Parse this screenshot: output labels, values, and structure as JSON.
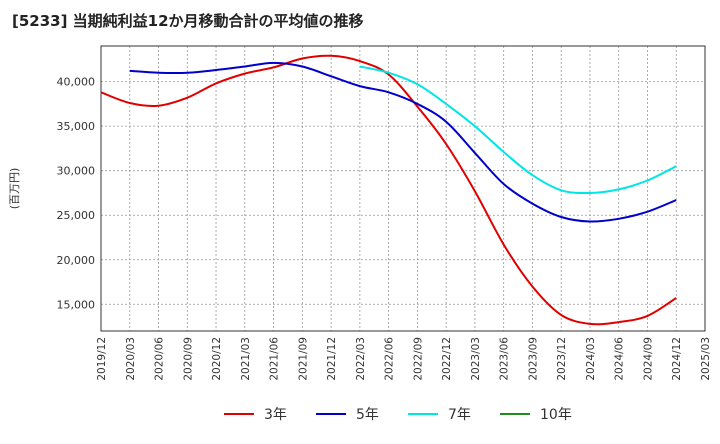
{
  "chart_data": {
    "type": "line",
    "title": "[5233]  当期純利益12か月移動合計の平均値の推移",
    "ylabel": "(百万円)",
    "xlabel": "",
    "ylim": [
      12000,
      44000
    ],
    "yticks": [
      15000,
      20000,
      25000,
      30000,
      35000,
      40000
    ],
    "ytick_labels": [
      "15,000",
      "20,000",
      "25,000",
      "30,000",
      "35,000",
      "40,000"
    ],
    "xticks": [
      "2019/12",
      "2020/03",
      "2020/06",
      "2020/09",
      "2020/12",
      "2021/03",
      "2021/06",
      "2021/09",
      "2021/12",
      "2022/03",
      "2022/06",
      "2022/09",
      "2022/12",
      "2023/03",
      "2023/06",
      "2023/09",
      "2023/12",
      "2024/03",
      "2024/06",
      "2024/09",
      "2024/12",
      "2025/03"
    ],
    "grid": true,
    "legend_position": "bottom",
    "series": [
      {
        "name": "3年",
        "color": "#e00000",
        "points": [
          [
            "2019/12",
            38800
          ],
          [
            "2020/03",
            37600
          ],
          [
            "2020/06",
            37300
          ],
          [
            "2020/09",
            38200
          ],
          [
            "2020/12",
            39800
          ],
          [
            "2021/03",
            40900
          ],
          [
            "2021/06",
            41600
          ],
          [
            "2021/09",
            42600
          ],
          [
            "2021/12",
            42900
          ],
          [
            "2022/03",
            42300
          ],
          [
            "2022/06",
            40800
          ],
          [
            "2022/09",
            37200
          ],
          [
            "2022/12",
            33000
          ],
          [
            "2023/03",
            27700
          ],
          [
            "2023/06",
            21700
          ],
          [
            "2023/09",
            17000
          ],
          [
            "2023/12",
            13800
          ],
          [
            "2024/03",
            12800
          ],
          [
            "2024/06",
            13000
          ],
          [
            "2024/09",
            13700
          ],
          [
            "2024/12",
            15700
          ]
        ]
      },
      {
        "name": "5年",
        "color": "#0000cc",
        "points": [
          [
            "2020/03",
            41200
          ],
          [
            "2020/06",
            41000
          ],
          [
            "2020/09",
            41000
          ],
          [
            "2020/12",
            41300
          ],
          [
            "2021/03",
            41700
          ],
          [
            "2021/06",
            42100
          ],
          [
            "2021/09",
            41700
          ],
          [
            "2021/12",
            40600
          ],
          [
            "2022/03",
            39500
          ],
          [
            "2022/06",
            38800
          ],
          [
            "2022/09",
            37500
          ],
          [
            "2022/12",
            35500
          ],
          [
            "2023/03",
            32000
          ],
          [
            "2023/06",
            28500
          ],
          [
            "2023/09",
            26300
          ],
          [
            "2023/12",
            24800
          ],
          [
            "2024/03",
            24300
          ],
          [
            "2024/06",
            24600
          ],
          [
            "2024/09",
            25400
          ],
          [
            "2024/12",
            26700
          ]
        ]
      },
      {
        "name": "7年",
        "color": "#00e5e5",
        "points": [
          [
            "2022/03",
            41700
          ],
          [
            "2022/06",
            41000
          ],
          [
            "2022/09",
            39700
          ],
          [
            "2022/12",
            37500
          ],
          [
            "2023/03",
            35000
          ],
          [
            "2023/06",
            32100
          ],
          [
            "2023/09",
            29500
          ],
          [
            "2023/12",
            27800
          ],
          [
            "2024/03",
            27500
          ],
          [
            "2024/06",
            27900
          ],
          [
            "2024/09",
            28900
          ],
          [
            "2024/12",
            30500
          ]
        ]
      },
      {
        "name": "10年",
        "color": "#228b22",
        "points": []
      }
    ]
  }
}
